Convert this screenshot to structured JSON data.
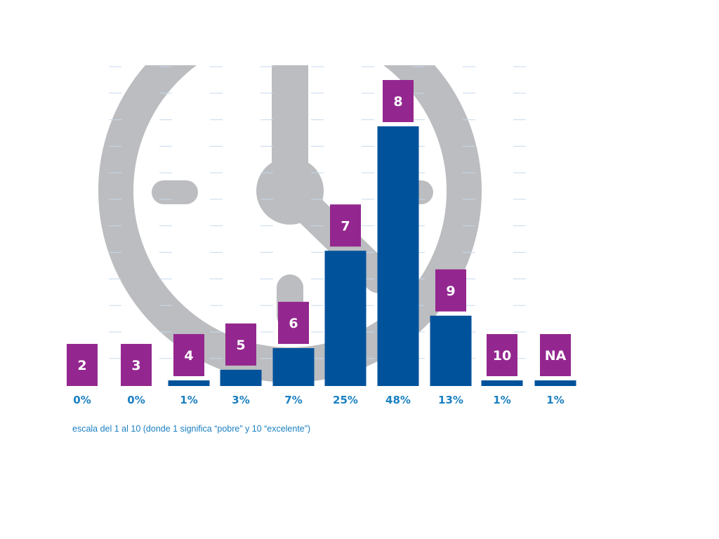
{
  "chart_data": {
    "type": "bar",
    "categories": [
      "2",
      "3",
      "4",
      "5",
      "6",
      "7",
      "8",
      "9",
      "10",
      "NA"
    ],
    "values": [
      0,
      0,
      1,
      3,
      7,
      25,
      48,
      13,
      1,
      1
    ],
    "value_labels": [
      "0%",
      "0%",
      "1%",
      "3%",
      "7%",
      "25%",
      "48%",
      "13%",
      "1%",
      "1%"
    ],
    "ylim": [
      0,
      50
    ],
    "grid": true,
    "caption": "escala del 1 al 10 (donde 1 significa “pobre” y 10 “excelente”)"
  },
  "colors": {
    "bar": "#00529b",
    "category_box": "#93278f",
    "value_label": "#1a7fc1",
    "grid": "#c5d9ec",
    "background_icon": "#bcbdc0"
  },
  "background_icon": "clock-icon"
}
